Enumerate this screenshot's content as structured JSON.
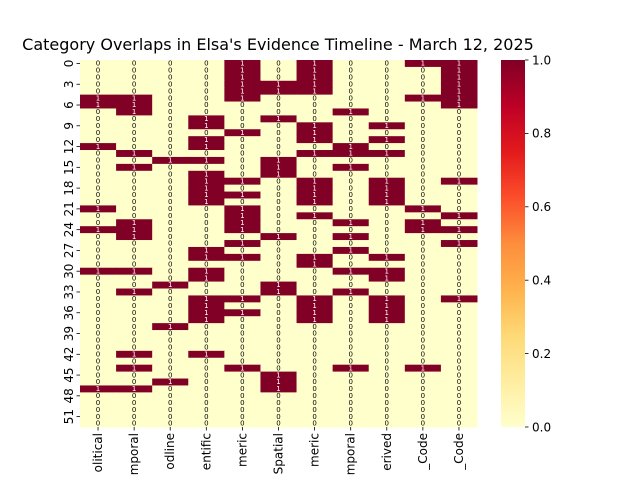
{
  "chart_data": {
    "type": "heatmap",
    "title": "Category Overlaps in Elsa's Evidence Timeline - March 12, 2025",
    "columns": [
      "olitical",
      "mporal",
      "odline",
      "entific",
      "meric",
      "Spatial",
      "meric",
      "mporal",
      "erived",
      "_Code",
      "_Code"
    ],
    "row_tick_labels": [
      "0",
      "3",
      "6",
      "9",
      "12",
      "15",
      "18",
      "21",
      "24",
      "27",
      "30",
      "33",
      "36",
      "39",
      "42",
      "45",
      "48",
      "51"
    ],
    "row_tick_step": 3,
    "row_count": 53,
    "value_range": [
      0,
      1
    ],
    "colorbar_ticks": [
      "0.0",
      "0.2",
      "0.4",
      "0.6",
      "0.8",
      "1.0"
    ],
    "colormap": [
      "#ffffcc",
      "#ffeda0",
      "#fed976",
      "#feb24c",
      "#fd8d3c",
      "#fc4e2a",
      "#e31a1c",
      "#bd0026",
      "#800026"
    ],
    "cell_annotations": {
      "value_0": "0",
      "value_1": "1"
    },
    "matrix": [
      [
        0,
        0,
        0,
        0,
        1,
        0,
        1,
        0,
        0,
        1,
        1
      ],
      [
        0,
        0,
        0,
        0,
        1,
        0,
        1,
        0,
        0,
        0,
        1
      ],
      [
        0,
        0,
        0,
        0,
        1,
        0,
        1,
        0,
        0,
        0,
        1
      ],
      [
        0,
        0,
        0,
        0,
        1,
        1,
        1,
        0,
        0,
        0,
        1
      ],
      [
        0,
        0,
        0,
        0,
        1,
        1,
        1,
        0,
        0,
        0,
        1
      ],
      [
        1,
        1,
        0,
        0,
        1,
        0,
        0,
        0,
        0,
        1,
        1
      ],
      [
        1,
        1,
        0,
        0,
        0,
        0,
        0,
        0,
        0,
        0,
        1
      ],
      [
        0,
        1,
        0,
        0,
        0,
        0,
        0,
        1,
        0,
        0,
        0
      ],
      [
        0,
        0,
        0,
        1,
        0,
        1,
        0,
        0,
        0,
        0,
        0
      ],
      [
        0,
        0,
        0,
        1,
        0,
        0,
        1,
        0,
        1,
        0,
        0
      ],
      [
        0,
        0,
        0,
        0,
        1,
        0,
        1,
        0,
        0,
        0,
        0
      ],
      [
        0,
        0,
        0,
        1,
        0,
        0,
        1,
        0,
        1,
        0,
        0
      ],
      [
        1,
        0,
        0,
        1,
        0,
        0,
        0,
        1,
        0,
        0,
        0
      ],
      [
        0,
        1,
        0,
        0,
        0,
        0,
        1,
        1,
        1,
        0,
        0
      ],
      [
        0,
        0,
        1,
        1,
        0,
        1,
        0,
        0,
        0,
        0,
        0
      ],
      [
        0,
        1,
        0,
        0,
        0,
        1,
        0,
        1,
        0,
        0,
        0
      ],
      [
        0,
        0,
        0,
        1,
        0,
        1,
        0,
        0,
        0,
        0,
        0
      ],
      [
        0,
        0,
        0,
        1,
        1,
        0,
        1,
        0,
        1,
        0,
        1
      ],
      [
        0,
        0,
        0,
        1,
        0,
        0,
        1,
        0,
        1,
        0,
        0
      ],
      [
        0,
        0,
        0,
        1,
        1,
        0,
        1,
        0,
        1,
        0,
        0
      ],
      [
        0,
        0,
        0,
        1,
        0,
        0,
        1,
        0,
        1,
        0,
        0
      ],
      [
        1,
        0,
        0,
        0,
        1,
        0,
        0,
        0,
        0,
        1,
        0
      ],
      [
        0,
        0,
        0,
        0,
        1,
        0,
        1,
        0,
        0,
        0,
        1
      ],
      [
        0,
        1,
        0,
        0,
        1,
        0,
        0,
        1,
        0,
        1,
        0
      ],
      [
        1,
        1,
        0,
        0,
        1,
        0,
        0,
        0,
        0,
        1,
        1
      ],
      [
        0,
        1,
        0,
        0,
        0,
        1,
        0,
        1,
        0,
        0,
        0
      ],
      [
        0,
        0,
        0,
        0,
        1,
        0,
        0,
        0,
        0,
        0,
        1
      ],
      [
        0,
        0,
        0,
        1,
        0,
        0,
        0,
        1,
        0,
        0,
        0
      ],
      [
        0,
        0,
        0,
        1,
        1,
        0,
        1,
        0,
        1,
        0,
        0
      ],
      [
        0,
        0,
        0,
        0,
        0,
        0,
        1,
        0,
        0,
        0,
        0
      ],
      [
        1,
        1,
        0,
        1,
        0,
        0,
        0,
        1,
        1,
        0,
        0
      ],
      [
        0,
        0,
        0,
        1,
        0,
        0,
        0,
        0,
        1,
        0,
        0
      ],
      [
        0,
        0,
        1,
        0,
        0,
        1,
        0,
        0,
        0,
        0,
        0
      ],
      [
        0,
        1,
        0,
        0,
        0,
        1,
        0,
        1,
        0,
        0,
        0
      ],
      [
        0,
        0,
        0,
        1,
        1,
        0,
        1,
        0,
        1,
        0,
        1
      ],
      [
        0,
        0,
        0,
        1,
        0,
        0,
        1,
        0,
        1,
        0,
        0
      ],
      [
        0,
        0,
        0,
        1,
        1,
        0,
        1,
        0,
        1,
        0,
        0
      ],
      [
        0,
        0,
        0,
        1,
        0,
        0,
        1,
        0,
        1,
        0,
        0
      ],
      [
        0,
        0,
        1,
        0,
        0,
        0,
        0,
        0,
        0,
        0,
        0
      ],
      [
        0,
        0,
        0,
        0,
        0,
        0,
        0,
        0,
        0,
        0,
        0
      ],
      [
        0,
        0,
        0,
        0,
        0,
        0,
        0,
        0,
        0,
        0,
        0
      ],
      [
        0,
        0,
        0,
        0,
        0,
        0,
        0,
        0,
        0,
        0,
        0
      ],
      [
        0,
        1,
        0,
        1,
        0,
        0,
        0,
        0,
        0,
        0,
        0
      ],
      [
        0,
        0,
        0,
        0,
        0,
        0,
        0,
        0,
        0,
        0,
        0
      ],
      [
        0,
        1,
        0,
        0,
        1,
        0,
        0,
        1,
        0,
        1,
        0
      ],
      [
        0,
        0,
        0,
        0,
        0,
        1,
        0,
        0,
        0,
        0,
        0
      ],
      [
        0,
        0,
        1,
        0,
        0,
        1,
        0,
        0,
        0,
        0,
        0
      ],
      [
        1,
        1,
        0,
        0,
        0,
        1,
        0,
        0,
        0,
        0,
        0
      ],
      [
        0,
        0,
        0,
        0,
        0,
        0,
        0,
        0,
        0,
        0,
        0
      ],
      [
        0,
        0,
        0,
        0,
        0,
        0,
        0,
        0,
        0,
        0,
        0
      ],
      [
        0,
        0,
        0,
        0,
        0,
        0,
        0,
        0,
        0,
        0,
        0
      ],
      [
        0,
        0,
        0,
        0,
        0,
        0,
        0,
        0,
        0,
        0,
        0
      ],
      [
        0,
        0,
        0,
        0,
        0,
        0,
        0,
        0,
        0,
        0,
        0
      ]
    ]
  }
}
